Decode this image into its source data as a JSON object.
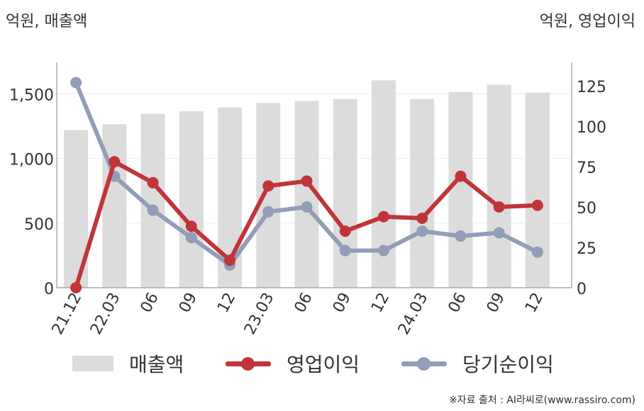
{
  "units": {
    "left": "억원, 매출액",
    "right": "억원, 영업이익"
  },
  "legend": {
    "sales": "매출액",
    "op": "영업이익",
    "net": "당기순이익"
  },
  "source": "※자료 출처 : AI라씨로(www.rassiro.com)",
  "colors": {
    "sales": "#dcdcdc",
    "op": "#c0353a",
    "net": "#929db7",
    "axis": "#999999",
    "grid": "#ececec"
  },
  "chart_data": {
    "type": "bar+line",
    "categories": [
      "21.12",
      "22.03",
      "06",
      "09",
      "12",
      "23.03",
      "06",
      "09",
      "12",
      "24.03",
      "06",
      "09",
      "12"
    ],
    "left_axis": {
      "ylim": [
        0,
        1700
      ],
      "ticks": [
        0,
        500,
        1000,
        1500
      ],
      "tick_labels": [
        "0",
        "500",
        "1,000",
        "1,500"
      ]
    },
    "right_axis": {
      "ylim": [
        0,
        136
      ],
      "ticks": [
        0,
        25,
        50,
        75,
        100,
        125
      ],
      "tick_labels": [
        "0",
        "25",
        "50",
        "75",
        "100",
        "125"
      ]
    },
    "series": [
      {
        "name": "매출액",
        "type": "bar",
        "axis": "left",
        "values": [
          1220,
          1265,
          1345,
          1365,
          1395,
          1430,
          1445,
          1460,
          1605,
          1460,
          1515,
          1570,
          1510
        ]
      },
      {
        "name": "영업이익",
        "type": "line",
        "axis": "right",
        "values": [
          0,
          78,
          65,
          38,
          17,
          63,
          66,
          35,
          44,
          43,
          69,
          50,
          51
        ]
      },
      {
        "name": "당기순이익",
        "type": "line",
        "axis": "right",
        "values": [
          127,
          69,
          48,
          31,
          14,
          47,
          50,
          23,
          23,
          35,
          32,
          34,
          22
        ]
      }
    ]
  }
}
